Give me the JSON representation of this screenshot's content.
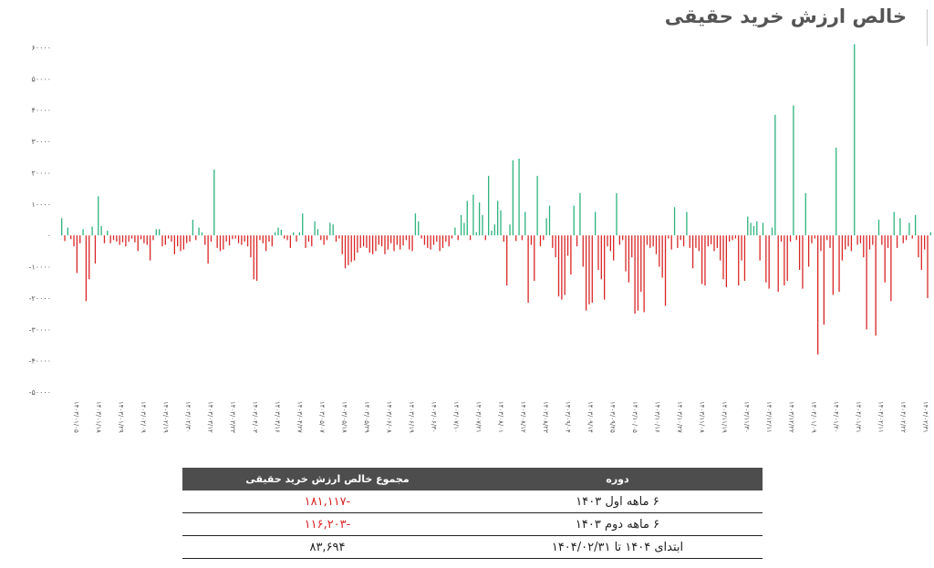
{
  "title": "خالص ارزش خرید حقیقی",
  "colors": {
    "positive": "#2db37d",
    "negative": "#d92626",
    "header_bg": "#4d4d4d",
    "negative_text": "#d92626"
  },
  "chart_data": {
    "type": "bar",
    "title": "خالص ارزش خرید حقیقی",
    "ylim": [
      -50000,
      60000
    ],
    "yticks": [
      {
        "value": 60000,
        "label": "۶۰۰۰۰"
      },
      {
        "value": 50000,
        "label": "۵۰۰۰۰"
      },
      {
        "value": 40000,
        "label": "۴۰۰۰۰"
      },
      {
        "value": 30000,
        "label": "۳۰۰۰۰"
      },
      {
        "value": 20000,
        "label": "۲۰۰۰۰"
      },
      {
        "value": 10000,
        "label": "۱۰۰۰۰"
      },
      {
        "value": 0,
        "label": "۰"
      },
      {
        "value": -10000,
        "label": "-۱۰۰۰۰"
      },
      {
        "value": -20000,
        "label": "-۲۰۰۰۰"
      },
      {
        "value": -30000,
        "label": "-۳۰۰۰۰"
      },
      {
        "value": -40000,
        "label": "-۴۰۰۰۰"
      },
      {
        "value": -50000,
        "label": "-۵۰۰۰۰"
      }
    ],
    "grid": false,
    "legend": "none",
    "x_tick_labels": [
      "۱۴۰۳/۰۱/۰۵",
      "۱۴۰۳/۰۱/۱۸",
      "۱۴۰۳/۰۱/۲۹",
      "۱۴۰۳/۰۲/۰۹",
      "۱۴۰۳/۰۲/۱۹",
      "۱۴۰۳/۰۲/۳۰",
      "۱۴۰۳/۰۳/۱۲",
      "۱۴۰۳/۰۳/۲۳",
      "۱۴۰۳/۰۴/۰۳",
      "۱۴۰۳/۰۴/۱۶",
      "۱۴۰۳/۰۴/۲۷",
      "۱۴۰۳/۰۵/۰۷",
      "۱۴۰۳/۰۵/۱۸",
      "۱۴۰۳/۰۵/۲۹",
      "۱۴۰۳/۰۶/۰۸",
      "۱۴۰۳/۰۶/۱۹",
      "۱۴۰۳/۰۶/۳۰",
      "۱۴۰۳/۰۷/۱۰",
      "۱۴۰۳/۰۷/۲۱",
      "۱۴۰۳/۰۸/۰۱",
      "۱۴۰۳/۰۸/۱۲",
      "۱۴۰۳/۰۸/۲۳",
      "۱۴۰۳/۰۹/۰۴",
      "۱۴۰۳/۰۹/۱۴",
      "۱۴۰۳/۰۹/۲۵",
      "۱۴۰۳/۱۰/۰۵",
      "۱۴۰۳/۱۰/۱۶",
      "۱۴۰۳/۱۰/۲۷",
      "۱۴۰۳/۱۱/۰۸",
      "۱۴۰۳/۱۱/۱۹",
      "۱۴۰۳/۱۱/۳۰",
      "۱۴۰۳/۱۲/۱۱",
      "۱۴۰۳/۱۲/۲۲",
      "۱۴۰۴/۰۱/۰۹",
      "۱۴۰۴/۰۱/۲۰",
      "۱۴۰۴/۰۱/۳۱",
      "۱۴۰۴/۰۲/۱۱",
      "۱۴۰۴/۰۲/۲۲",
      "۱۴۰۴/۰۲/۳۱"
    ],
    "values": [
      5500,
      -1800,
      2500,
      -1200,
      -3500,
      -12000,
      -2500,
      2000,
      -21000,
      -14000,
      2800,
      -9000,
      12500,
      3000,
      -2500,
      1500,
      -2500,
      -1500,
      -2000,
      -3000,
      -2200,
      -3500,
      -2000,
      -1000,
      -2200,
      -5000,
      -1200,
      -2500,
      -3000,
      -8000,
      -1500,
      2000,
      2000,
      -3500,
      -3000,
      -1000,
      -2000,
      -6000,
      -3500,
      -5000,
      -4500,
      -2500,
      -2000,
      5000,
      -1500,
      2500,
      1000,
      -3000,
      -9000,
      -2000,
      21000,
      -4000,
      -5000,
      -4500,
      -2000,
      -3200,
      -1200,
      -1000,
      -2500,
      -3000,
      -2000,
      -3500,
      -7000,
      -14000,
      -14500,
      -1500,
      -2500,
      -5000,
      -2000,
      -3500,
      1000,
      2500,
      1800,
      -1000,
      -1500,
      -4000,
      1000,
      -2000,
      1000,
      7000,
      -4000,
      -2000,
      -3500,
      4500,
      2000,
      -1500,
      -3000,
      -1500,
      4000,
      3500,
      -2000,
      -1000,
      -6000,
      -10500,
      -9500,
      -8500,
      -8000,
      -5500,
      -4000,
      -3500,
      -4000,
      -5500,
      -6000,
      -5000,
      -3000,
      -3500,
      -6000,
      -4500,
      -2500,
      -5000,
      -3000,
      -4500,
      -3200,
      -1500,
      -4500,
      -5000,
      7000,
      4500,
      -1000,
      -3000,
      -4000,
      -4500,
      -3000,
      -2000,
      -5000,
      -4000,
      -2000,
      -3500,
      -1000,
      2500,
      -1500,
      6500,
      4000,
      11000,
      -1500,
      13000,
      1000,
      10500,
      6500,
      -1500,
      19000,
      1500,
      3500,
      11000,
      8000,
      -2000,
      -16000,
      3500,
      24000,
      -1800,
      24500,
      -1500,
      7500,
      -21500,
      -3000,
      -14500,
      19000,
      -3500,
      -1500,
      5500,
      9500,
      -4000,
      -7000,
      -19500,
      -20500,
      -19000,
      -6500,
      -12500,
      9500,
      -3500,
      13500,
      -10000,
      -24000,
      -22000,
      -21500,
      7500,
      -11000,
      -14000,
      -20500,
      -3500,
      -5000,
      -8000,
      13500,
      -3000,
      -1500,
      -11500,
      -15000,
      -7000,
      -25000,
      -24000,
      -18000,
      -24500,
      -3000,
      -4000,
      -3500,
      -6000,
      -10000,
      -13500,
      -22500,
      -1000,
      -4500,
      9000,
      -4000,
      -1500,
      -3500,
      7500,
      -4000,
      -10500,
      -4000,
      -5000,
      -15500,
      -16000,
      -3500,
      -2800,
      -5000,
      -4000,
      -8000,
      -14000,
      -16500,
      -2000,
      -1500,
      -1000,
      -16000,
      -8000,
      -14500,
      6000,
      4000,
      3000,
      4500,
      -8000,
      4000,
      -15000,
      -17000,
      2500,
      38500,
      -18000,
      -2000,
      -16000,
      -14500,
      -2000,
      41500,
      -1500,
      -11000,
      -17000,
      13500,
      -10000,
      -2500,
      -1000,
      -38000,
      -5000,
      -28500,
      -1500,
      -4000,
      -19000,
      28000,
      -18000,
      -8000,
      -4500,
      -3500,
      -5000,
      61000,
      -3000,
      -2500,
      -7000,
      -30000,
      -4500,
      -3000,
      -32000,
      5000,
      -3000,
      -15000,
      -4000,
      -21000,
      7500,
      -4000,
      5500,
      -2500,
      -1500,
      4000,
      -1000,
      6500,
      -7000,
      -11000,
      -4500,
      -20000,
      1000
    ]
  },
  "summary_table": {
    "headers": {
      "period": "دوره",
      "value": "مجموع خالص ارزش خرید حقیقی"
    },
    "rows": [
      {
        "period": "۶ ماهه اول ۱۴۰۳",
        "value": "-۱۸۱,۱۱۷"
      },
      {
        "period": "۶ ماهه دوم ۱۴۰۳",
        "value": "-۱۱۶,۲۰۳"
      },
      {
        "period": "ابتدای ۱۴۰۴ تا ۱۴۰۴/۰۲/۳۱",
        "value": "۸۳,۶۹۴"
      }
    ]
  }
}
